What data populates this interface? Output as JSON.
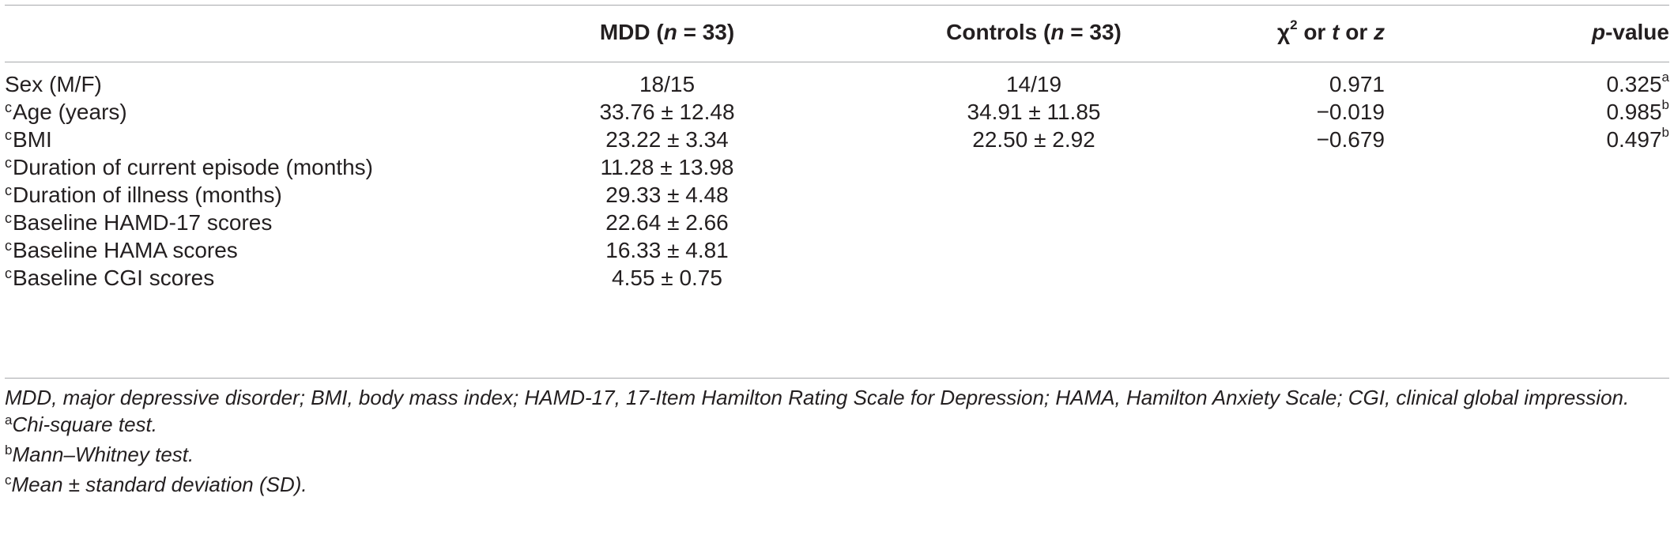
{
  "header": {
    "col0": "",
    "col1": {
      "pre": "MDD (",
      "n": "n",
      "post": " = 33)"
    },
    "col2": {
      "pre": "Controls (",
      "n": "n",
      "post": " = 33)"
    },
    "col3": {
      "chi": "χ",
      "sq": "2",
      "or1": " or ",
      "t": "t",
      "or2": " or ",
      "z": "z"
    },
    "col4": {
      "p": "p",
      "rest": "-value"
    }
  },
  "rows": [
    {
      "mark": "",
      "label": "Sex (M/F)",
      "mdd": "18/15",
      "controls": "14/19",
      "stat": "0.971",
      "p": "0.325",
      "p_sup": "a"
    },
    {
      "mark": "c",
      "label": "Age (years)",
      "mdd": "33.76 ± 12.48",
      "controls": "34.91 ± 11.85",
      "stat": "−0.019",
      "p": "0.985",
      "p_sup": "b"
    },
    {
      "mark": "c",
      "label": "BMI",
      "mdd": "23.22 ± 3.34",
      "controls": "22.50 ± 2.92",
      "stat": "−0.679",
      "p": "0.497",
      "p_sup": "b"
    },
    {
      "mark": "c",
      "label": "Duration of current episode (months)",
      "mdd": "11.28 ± 13.98",
      "controls": "",
      "stat": "",
      "p": "",
      "p_sup": ""
    },
    {
      "mark": "c",
      "label": "Duration of illness (months)",
      "mdd": "29.33 ± 4.48",
      "controls": "",
      "stat": "",
      "p": "",
      "p_sup": ""
    },
    {
      "mark": "c",
      "label": "Baseline HAMD-17 scores",
      "mdd": "22.64 ± 2.66",
      "controls": "",
      "stat": "",
      "p": "",
      "p_sup": ""
    },
    {
      "mark": "c",
      "label": "Baseline HAMA scores",
      "mdd": "16.33 ± 4.81",
      "controls": "",
      "stat": "",
      "p": "",
      "p_sup": ""
    },
    {
      "mark": "c",
      "label": "Baseline CGI scores",
      "mdd": "4.55 ± 0.75",
      "controls": "",
      "stat": "",
      "p": "",
      "p_sup": ""
    }
  ],
  "notes": {
    "abbrev": "MDD, major depressive disorder; BMI, body mass index; HAMD-17, 17-Item Hamilton Rating Scale for Depression; HAMA, Hamilton Anxiety Scale; CGI, clinical global impression.",
    "footnotes": [
      {
        "mark": "a",
        "text": "Chi-square test."
      },
      {
        "mark": "b",
        "text": "Mann–Whitney test."
      },
      {
        "mark": "c",
        "text": "Mean ± standard deviation (SD)."
      }
    ]
  }
}
